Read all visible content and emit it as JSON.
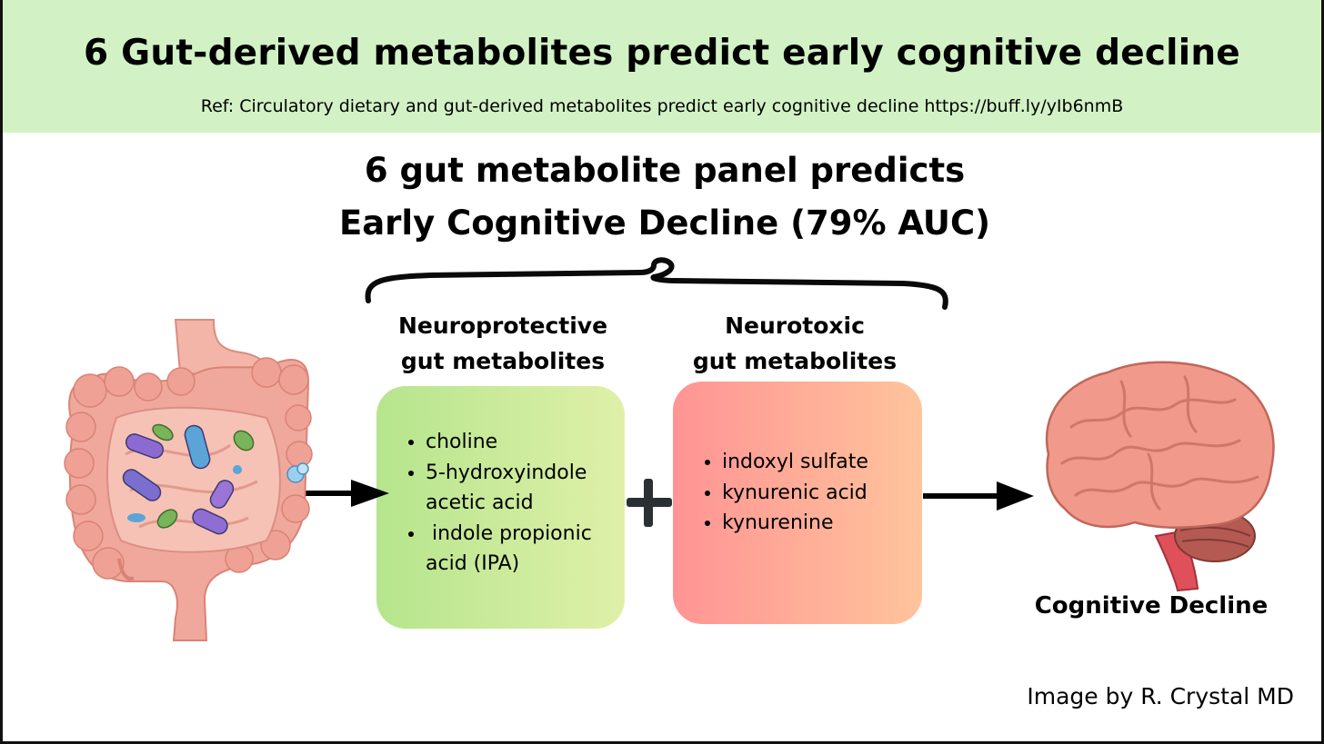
{
  "header": {
    "title": "6 Gut-derived metabolites predict early cognitive decline",
    "ref": "Ref: Circulatory dietary and gut-derived metabolites predict early cognitive decline https://buff.ly/yIb6nmB"
  },
  "panel": {
    "line1": "6 gut metabolite panel predicts",
    "line2": "Early Cognitive Decline (79% AUC)"
  },
  "neuroprotective": {
    "label_line1": "Neuroprotective",
    "label_line2": "gut metabolites",
    "items": [
      "choline",
      "5-hydroxyindole acetic acid",
      " indole propionic acid (IPA)"
    ]
  },
  "neurotoxic": {
    "label_line1": "Neurotoxic",
    "label_line2": "gut metabolites",
    "items": [
      "indoxyl sulfate",
      "kynurenic acid",
      "kynurenine"
    ]
  },
  "outcome": {
    "label": "Cognitive Decline"
  },
  "credit": "Image by R. Crystal MD",
  "colors": {
    "header_bg": "#d2f2c5",
    "protective_start": "#b6e58d",
    "protective_end": "#dff0a8",
    "toxic_start": "#ff9494",
    "toxic_end": "#ffc49c"
  },
  "icons": [
    "intestine-icon",
    "brain-icon",
    "plus-icon",
    "arrow-icon",
    "brace-icon"
  ]
}
